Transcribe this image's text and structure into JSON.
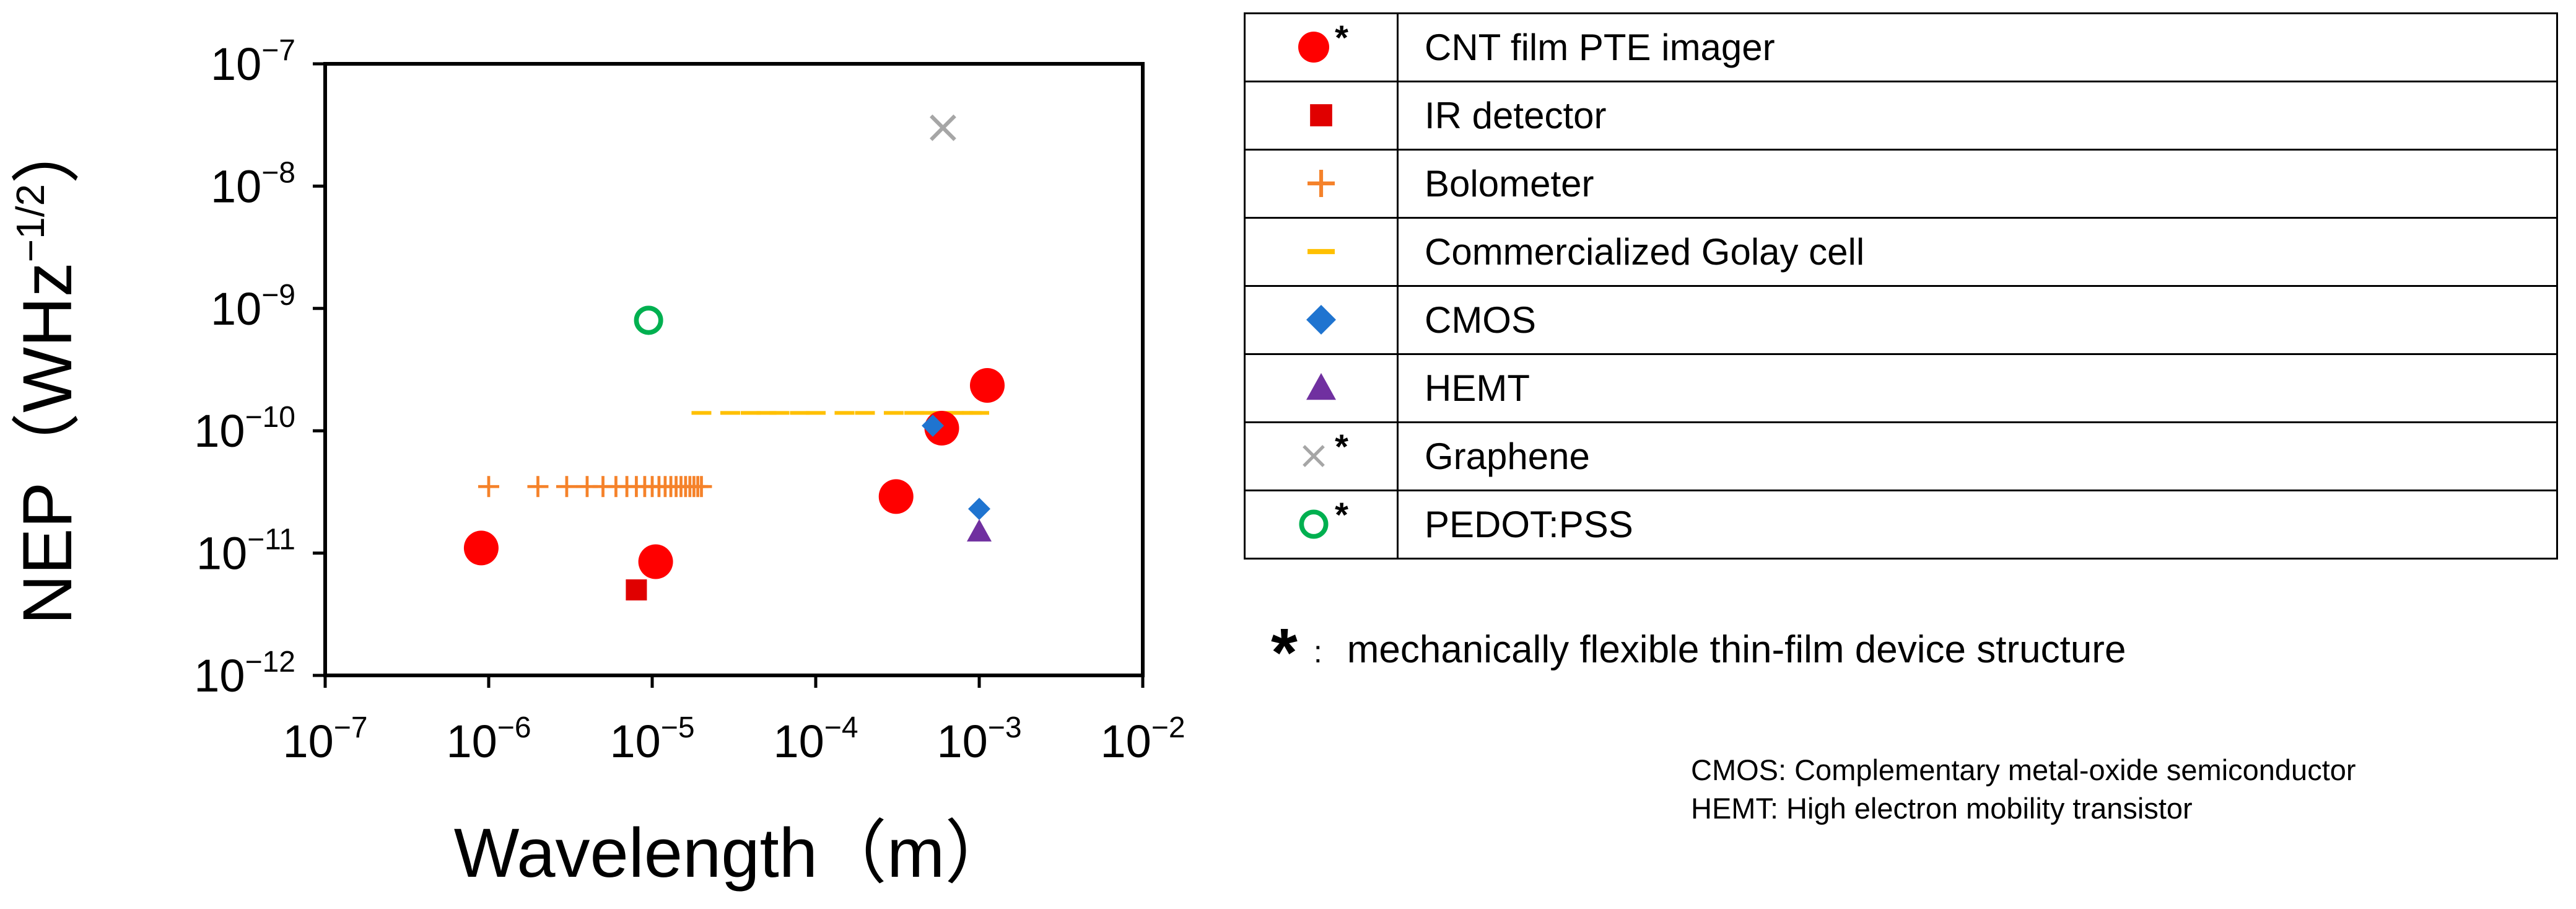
{
  "chart_data": {
    "type": "scatter",
    "xlabel": "Wavelength（m）",
    "ylabel_main": "NEP（WHz",
    "ylabel_sup": "−1/2",
    "ylabel_close": "）",
    "x_scale": "log",
    "y_scale": "log",
    "xlim": [
      1e-07,
      0.01
    ],
    "ylim": [
      1e-12,
      1e-07
    ],
    "x_ticks": [
      {
        "value": 1e-07,
        "base": "10",
        "exp": "−7"
      },
      {
        "value": 1e-06,
        "base": "10",
        "exp": "−6"
      },
      {
        "value": 1e-05,
        "base": "10",
        "exp": "−5"
      },
      {
        "value": 0.0001,
        "base": "10",
        "exp": "−4"
      },
      {
        "value": 0.001,
        "base": "10",
        "exp": "−3"
      },
      {
        "value": 0.01,
        "base": "10",
        "exp": "−2"
      }
    ],
    "y_ticks": [
      {
        "value": 1e-12,
        "base": "10",
        "exp": "−12"
      },
      {
        "value": 1e-11,
        "base": "10",
        "exp": "−11"
      },
      {
        "value": 1e-10,
        "base": "10",
        "exp": "−10"
      },
      {
        "value": 1e-09,
        "base": "10",
        "exp": "−9"
      },
      {
        "value": 1e-08,
        "base": "10",
        "exp": "−8"
      },
      {
        "value": 1e-07,
        "base": "10",
        "exp": "−7"
      }
    ],
    "grid": false,
    "legend_placement": "right",
    "series": [
      {
        "key": "cnt",
        "name": "CNT film PTE imager",
        "marker": "circle",
        "color": "#ff0000",
        "flexible": true,
        "points": [
          [
            9e-07,
            1.1e-11
          ],
          [
            1.05e-05,
            8.5e-12
          ],
          [
            0.00031,
            2.9e-11
          ],
          [
            0.00059,
            1.05e-10
          ],
          [
            0.00112,
            2.35e-10
          ]
        ]
      },
      {
        "key": "ir",
        "name": "IR detector",
        "marker": "square",
        "color": "#e00000",
        "flexible": false,
        "points": [
          [
            8e-06,
            5e-12
          ]
        ]
      },
      {
        "key": "bolo",
        "name": "Bolometer",
        "marker": "plus",
        "color": "#f5822a",
        "flexible": false,
        "points": [
          [
            1e-06,
            3.5e-11
          ],
          [
            2e-06,
            3.5e-11
          ],
          [
            3e-06,
            3.5e-11
          ],
          [
            4e-06,
            3.5e-11
          ],
          [
            5e-06,
            3.5e-11
          ],
          [
            6e-06,
            3.5e-11
          ],
          [
            7e-06,
            3.5e-11
          ],
          [
            8e-06,
            3.5e-11
          ],
          [
            9e-06,
            3.5e-11
          ],
          [
            1e-05,
            3.5e-11
          ],
          [
            1.1e-05,
            3.5e-11
          ],
          [
            1.2e-05,
            3.5e-11
          ],
          [
            1.3e-05,
            3.5e-11
          ],
          [
            1.4e-05,
            3.5e-11
          ],
          [
            1.5e-05,
            3.5e-11
          ],
          [
            1.6e-05,
            3.5e-11
          ],
          [
            1.7e-05,
            3.5e-11
          ],
          [
            1.8e-05,
            3.5e-11
          ],
          [
            1.9e-05,
            3.5e-11
          ],
          [
            2e-05,
            3.5e-11
          ]
        ]
      },
      {
        "key": "golay",
        "name": "Commercialized Golay cell",
        "marker": "dash",
        "color": "#ffc000",
        "flexible": false,
        "points": [
          [
            2e-05,
            1.4e-10
          ],
          [
            3e-05,
            1.4e-10
          ],
          [
            4e-05,
            1.4e-10
          ],
          [
            5e-05,
            1.4e-10
          ],
          [
            6e-05,
            1.4e-10
          ],
          [
            8e-05,
            1.4e-10
          ],
          [
            0.0001,
            1.4e-10
          ],
          [
            0.00015,
            1.4e-10
          ],
          [
            0.0002,
            1.4e-10
          ],
          [
            0.0003,
            1.4e-10
          ],
          [
            0.0004,
            1.4e-10
          ],
          [
            0.0005,
            1.4e-10
          ],
          [
            0.0006,
            1.4e-10
          ],
          [
            0.0007,
            1.4e-10
          ],
          [
            0.0008,
            1.4e-10
          ],
          [
            0.0009,
            1.4e-10
          ],
          [
            0.001,
            1.4e-10
          ]
        ]
      },
      {
        "key": "cmos",
        "name": "CMOS",
        "marker": "diamond",
        "color": "#1f74d0",
        "flexible": false,
        "points": [
          [
            0.00052,
            1.1e-10
          ],
          [
            0.001,
            2.3e-11
          ]
        ]
      },
      {
        "key": "hemt",
        "name": "HEMT",
        "marker": "triangle",
        "color": "#7030a0",
        "flexible": false,
        "points": [
          [
            0.001,
            1.5e-11
          ]
        ]
      },
      {
        "key": "graphene",
        "name": "Graphene",
        "marker": "x",
        "color": "#a6a6a6",
        "flexible": true,
        "points": [
          [
            0.0006,
            3e-08
          ]
        ]
      },
      {
        "key": "pedot",
        "name": "PEDOT:PSS",
        "marker": "open-circle",
        "color": "#00b050",
        "flexible": true,
        "points": [
          [
            9.5e-06,
            8e-10
          ]
        ]
      }
    ]
  },
  "legend": {
    "star": "*"
  },
  "note": {
    "star": "*",
    "colon": ":",
    "text": "mechanically flexible thin-film device structure"
  },
  "abbreviations": [
    "CMOS: Complementary metal-oxide semiconductor",
    "HEMT: High electron mobility transistor"
  ]
}
